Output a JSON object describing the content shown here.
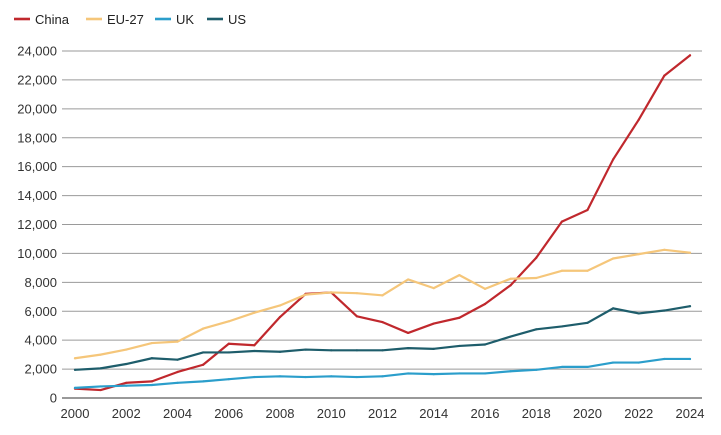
{
  "chart_data": {
    "type": "line",
    "title": "",
    "xlabel": "",
    "ylabel": "",
    "x": [
      2000,
      2001,
      2002,
      2003,
      2004,
      2005,
      2006,
      2007,
      2008,
      2009,
      2010,
      2011,
      2012,
      2013,
      2014,
      2015,
      2016,
      2017,
      2018,
      2019,
      2020,
      2021,
      2022,
      2023,
      2024
    ],
    "xticks": [
      "2000",
      "2002",
      "2004",
      "2006",
      "2008",
      "2010",
      "2012",
      "2014",
      "2016",
      "2018",
      "2020",
      "2022",
      "2024"
    ],
    "yticks": [
      "0",
      "2,000",
      "4,000",
      "6,000",
      "8,000",
      "10,000",
      "12,000",
      "14,000",
      "16,000",
      "18,000",
      "20,000",
      "22,000",
      "24,000"
    ],
    "xlim": [
      2000,
      2024
    ],
    "ylim": [
      0,
      24000
    ],
    "grid": true,
    "legend_position": "top-left",
    "series": [
      {
        "name": "China",
        "color": "#c0282d",
        "values": [
          650,
          550,
          1050,
          1150,
          1800,
          2300,
          3750,
          3650,
          5600,
          7200,
          7300,
          5650,
          5250,
          4500,
          5150,
          5550,
          6500,
          7800,
          9700,
          12200,
          13000,
          16500,
          19250,
          22300,
          23700
        ]
      },
      {
        "name": "EU-27",
        "color": "#f5c67a",
        "values": [
          2750,
          3000,
          3350,
          3800,
          3900,
          4800,
          5300,
          5900,
          6400,
          7150,
          7300,
          7250,
          7100,
          8200,
          7600,
          8500,
          7550,
          8250,
          8300,
          8800,
          8800,
          9650,
          9950,
          10250,
          10050
        ]
      },
      {
        "name": "UK",
        "color": "#2b9ecb",
        "values": [
          700,
          800,
          850,
          900,
          1050,
          1150,
          1300,
          1450,
          1500,
          1450,
          1500,
          1450,
          1500,
          1700,
          1650,
          1700,
          1700,
          1850,
          1950,
          2150,
          2150,
          2450,
          2450,
          2700,
          2700
        ]
      },
      {
        "name": "US",
        "color": "#1e5d6b",
        "values": [
          1950,
          2050,
          2350,
          2750,
          2650,
          3150,
          3150,
          3250,
          3200,
          3350,
          3300,
          3300,
          3300,
          3450,
          3400,
          3600,
          3700,
          4250,
          4750,
          4950,
          5200,
          6200,
          5850,
          6050,
          6350
        ]
      }
    ]
  }
}
